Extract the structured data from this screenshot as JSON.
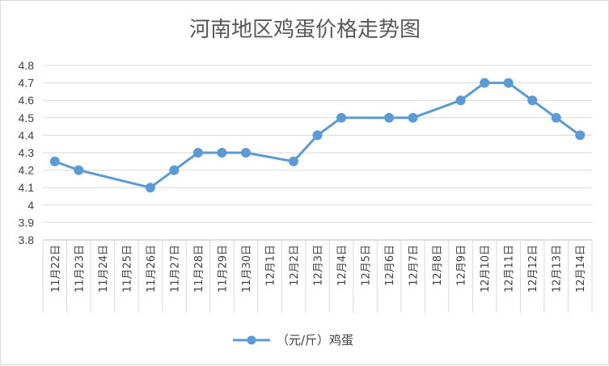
{
  "chart_data": {
    "type": "line",
    "title": "河南地区鸡蛋价格走势图",
    "xlabel": "",
    "ylabel": "",
    "ylim": [
      3.8,
      4.8
    ],
    "ystep": 0.1,
    "yticks": [
      "3.8",
      "3.9",
      "4",
      "4.1",
      "4.2",
      "4.3",
      "4.4",
      "4.5",
      "4.6",
      "4.7",
      "4.8"
    ],
    "grid": true,
    "legend_position": "bottom",
    "categories": [
      "11月22日",
      "11月23日",
      "11月24日",
      "11月25日",
      "11月26日",
      "11月27日",
      "11月28日",
      "11月29日",
      "11月30日",
      "12月1日",
      "12月2日",
      "12月3日",
      "12月4日",
      "12月5日",
      "12月6日",
      "12月7日",
      "12月8日",
      "12月9日",
      "12月10日",
      "12月11日",
      "12月12日",
      "12月13日",
      "12月14日"
    ],
    "series": [
      {
        "name": "（元/斤）鸡蛋",
        "color": "#5b9bd5",
        "values": [
          4.25,
          4.2,
          null,
          null,
          4.1,
          4.2,
          4.3,
          4.3,
          4.3,
          null,
          4.25,
          4.4,
          4.5,
          null,
          4.5,
          4.5,
          null,
          4.6,
          4.7,
          4.7,
          4.6,
          4.5,
          4.4
        ]
      }
    ]
  }
}
